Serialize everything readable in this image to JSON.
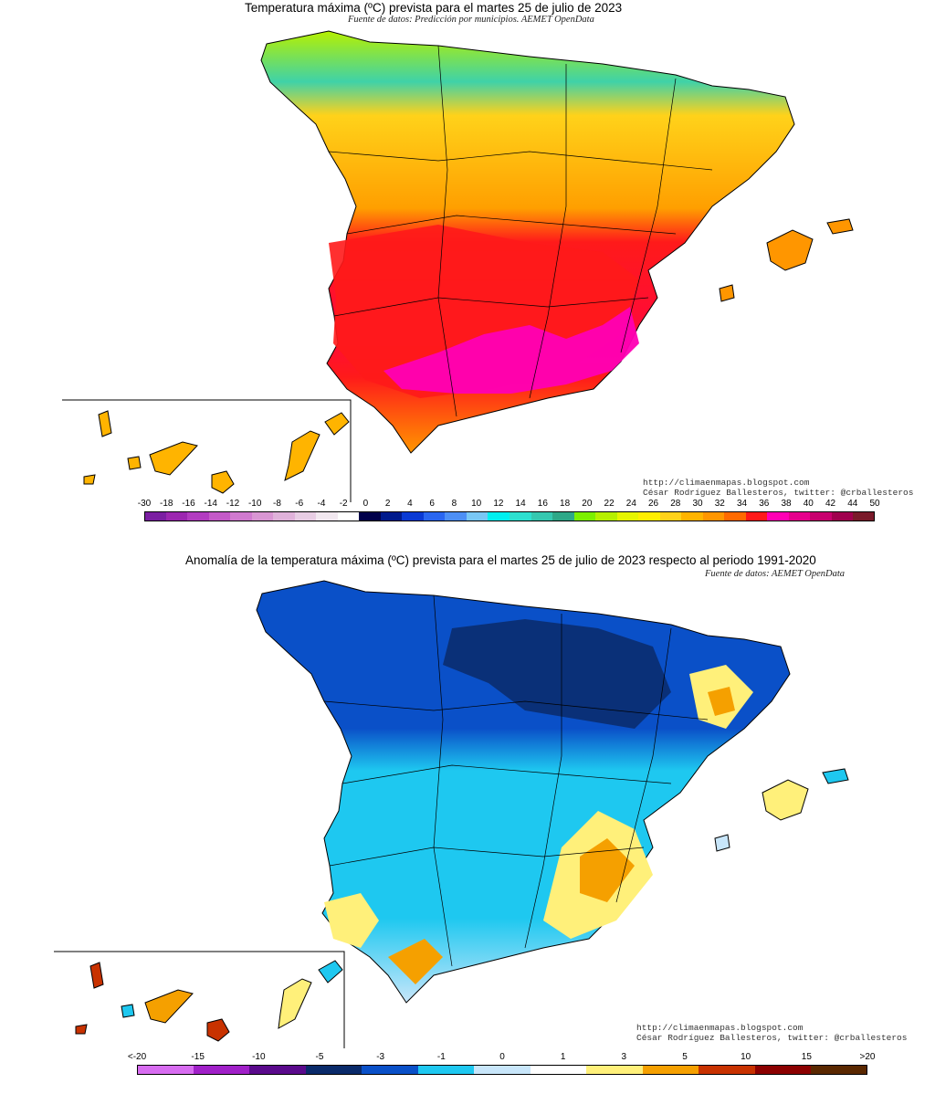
{
  "top": {
    "title": "Temperatura máxima (ºC) prevista para el martes 25 de julio de 2023",
    "source": "Fuente de datos: Predicción por municipios. AEMET OpenData",
    "credit_line1": "http://climaenmapas.blogspot.com",
    "credit_line2": "César Rodríguez Ballesteros, twitter: @crballesteros",
    "legend_ticks": [
      "-30",
      "-18",
      "-16",
      "-14",
      "-12",
      "-10",
      "-8",
      "-6",
      "-4",
      "-2",
      "0",
      "2",
      "4",
      "6",
      "8",
      "10",
      "12",
      "14",
      "16",
      "18",
      "20",
      "22",
      "24",
      "26",
      "28",
      "30",
      "32",
      "34",
      "36",
      "38",
      "40",
      "42",
      "44",
      "50"
    ],
    "legend_colors": [
      "#7b1fa2",
      "#9c27b0",
      "#b23cc0",
      "#c45ac8",
      "#d07acf",
      "#d996d3",
      "#e0b2da",
      "#e8cde4",
      "#f2e8f0",
      "#ffffff",
      "#00004a",
      "#001a8c",
      "#0a3ad4",
      "#2a66f0",
      "#4d8ff5",
      "#79c7f5",
      "#00f0f0",
      "#2de0d0",
      "#35c8b0",
      "#2ea888",
      "#7cf000",
      "#b6f000",
      "#e6f500",
      "#ffee00",
      "#ffd21a",
      "#ffb400",
      "#ff9600",
      "#ff6a00",
      "#ff1a1a",
      "#ff00b4",
      "#e6008c",
      "#c8006e",
      "#a0004e",
      "#7a1a2a"
    ]
  },
  "bottom": {
    "title": "Anomalía de la temperatura máxima (ºC) prevista para el martes 25 de julio de 2023 respecto al periodo 1991-2020",
    "source": "Fuente de datos: AEMET OpenData",
    "credit_line1": "http://climaenmapas.blogspot.com",
    "credit_line2": "César Rodríguez Ballesteros, twitter: @crballesteros",
    "legend_ticks": [
      "<-20",
      "-15",
      "-10",
      "-5",
      "-3",
      "-1",
      "0",
      "1",
      "3",
      "5",
      "10",
      "15",
      ">20"
    ],
    "legend_colors": [
      "#d76cf0",
      "#a020c8",
      "#5a0a8c",
      "#0a2a6a",
      "#0a50c8",
      "#1ec8f0",
      "#c8e6fa",
      "#ffffff",
      "#fff07a",
      "#f5a000",
      "#c83200",
      "#8c0000",
      "#5a2800"
    ]
  }
}
